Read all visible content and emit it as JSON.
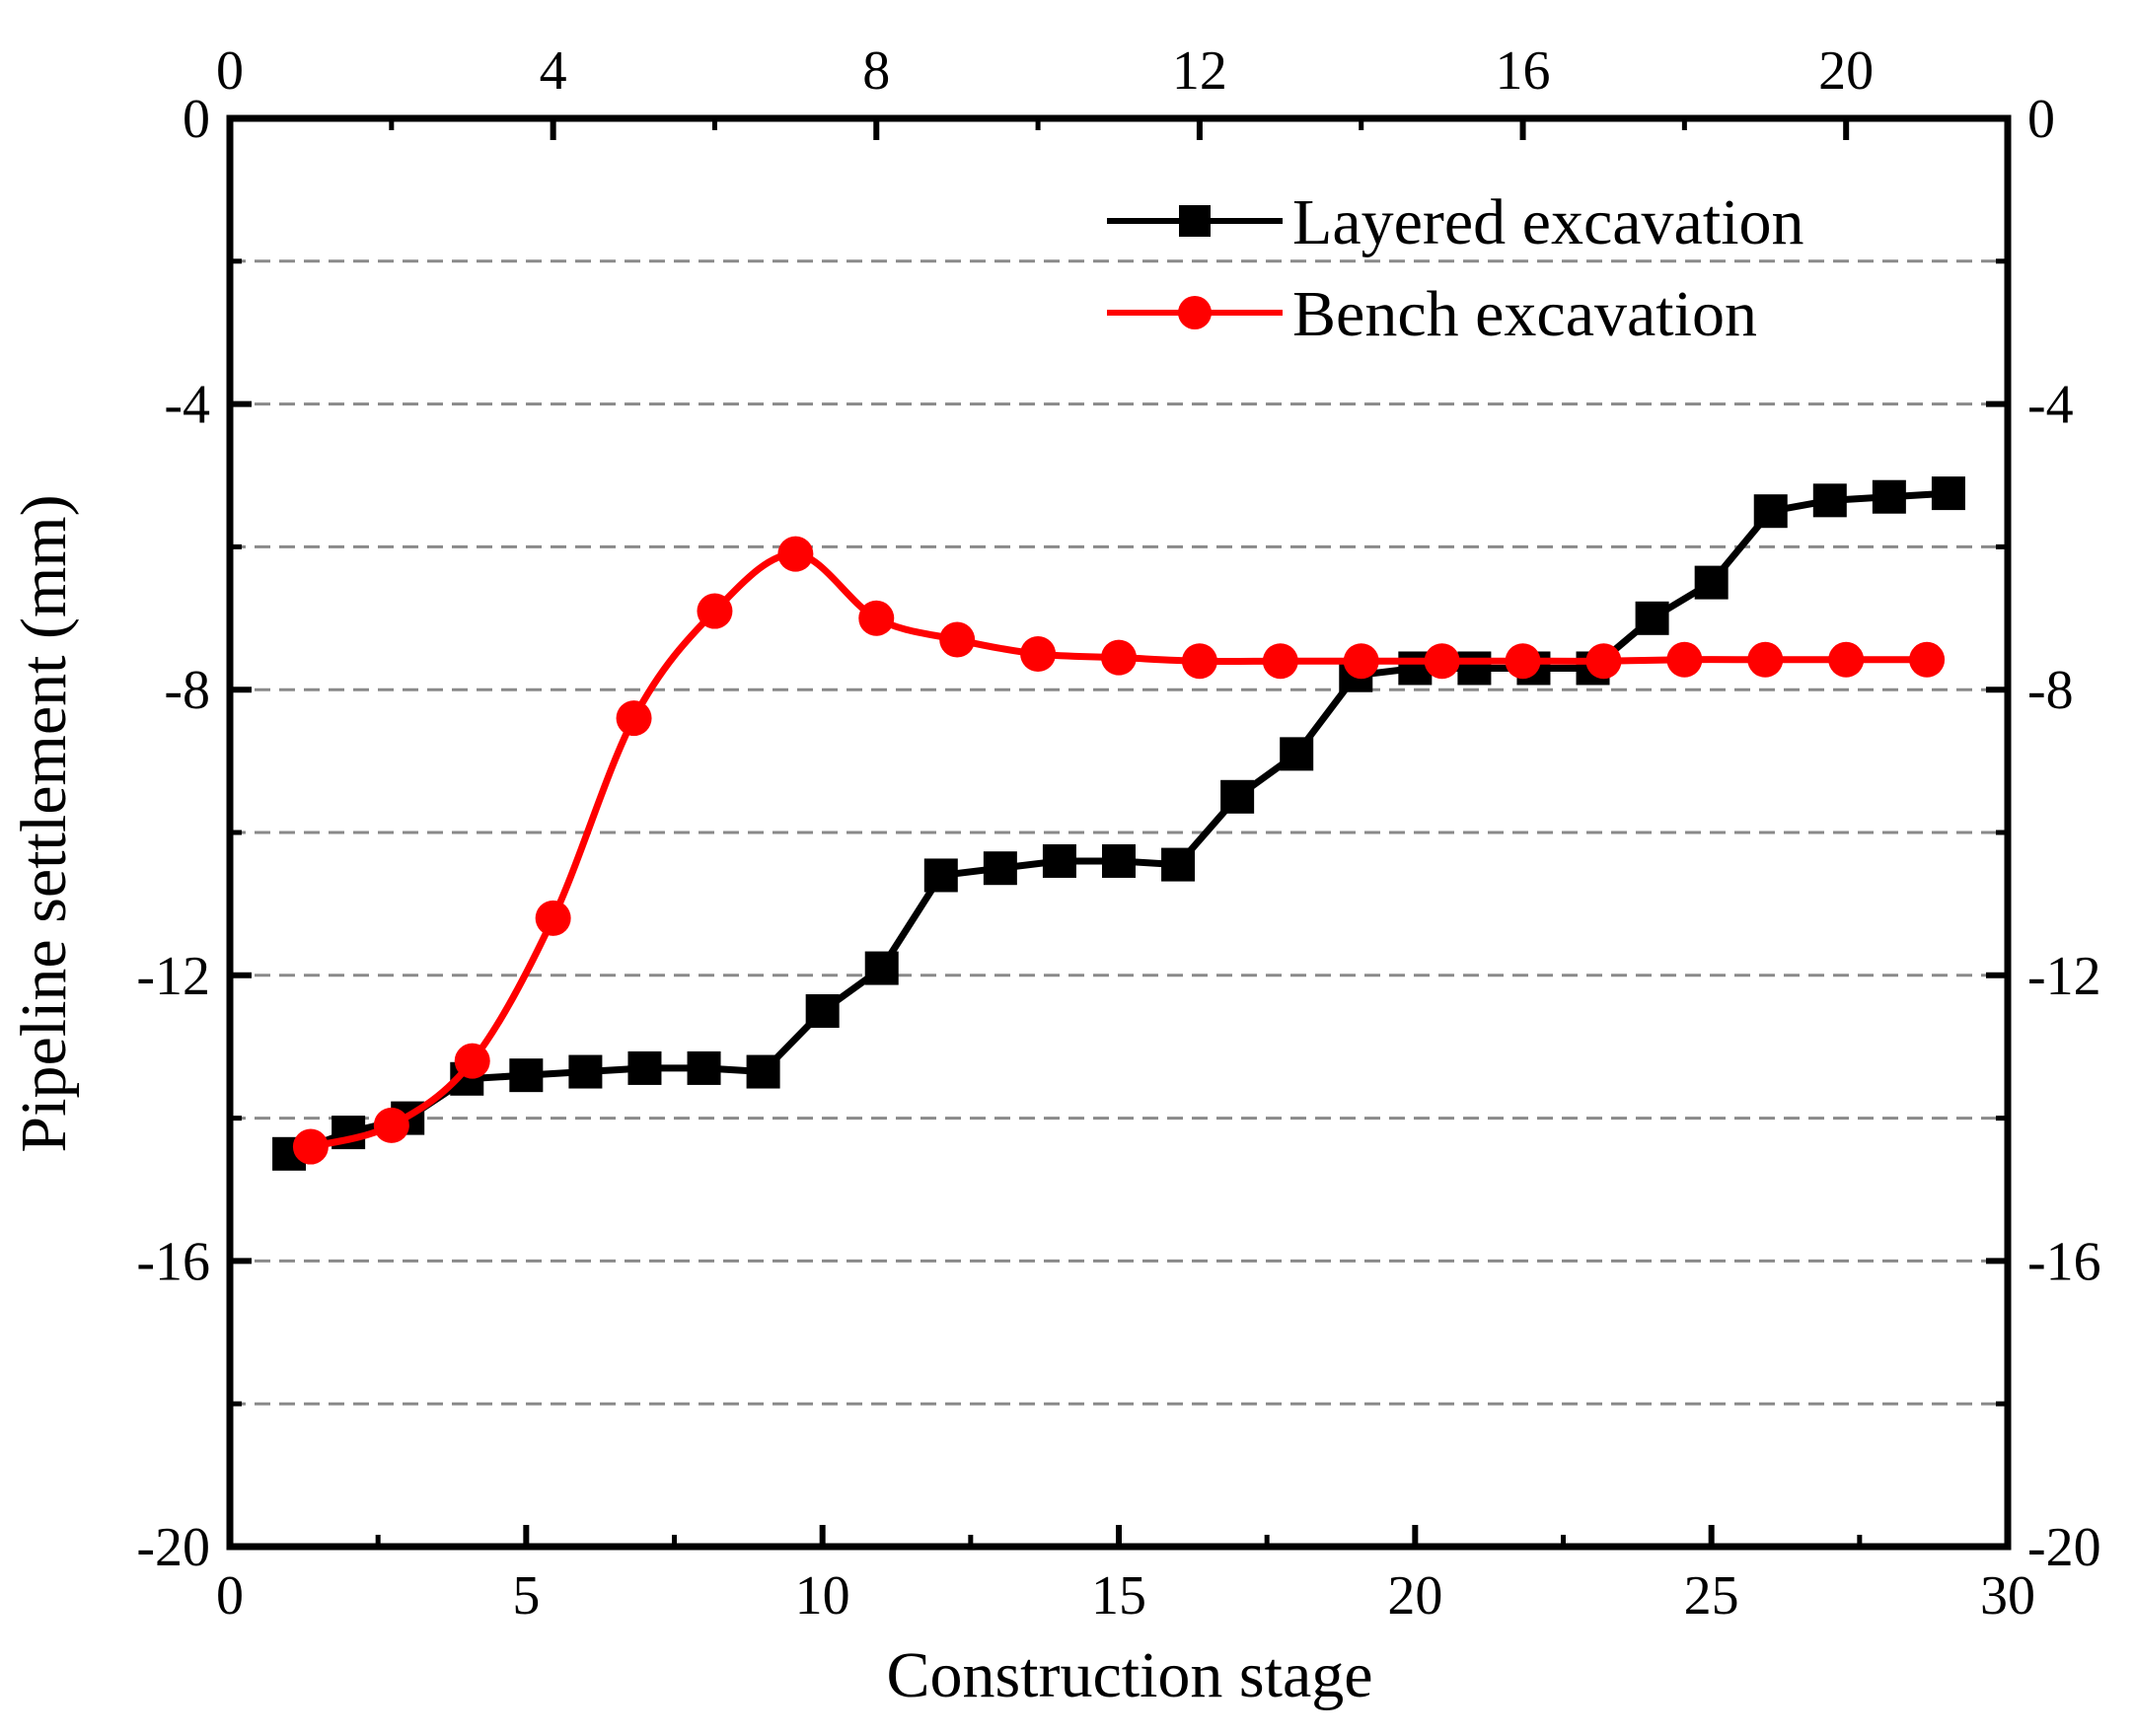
{
  "chart_data": {
    "type": "line",
    "xlabel": "Construction stage",
    "ylabel": "Pipeline settlement (mm)",
    "xlim": [
      0,
      30
    ],
    "ylim": [
      -20,
      0
    ],
    "x_ticks": [
      0,
      5,
      10,
      15,
      20,
      25,
      30
    ],
    "y_ticks": [
      0,
      -4,
      -8,
      -12,
      -16,
      -20
    ],
    "x_ticks_top": [
      0,
      4,
      8,
      12,
      16,
      20
    ],
    "x_top_range": [
      0,
      22
    ],
    "grid": "horizontal dashed",
    "legend_position": "top-right",
    "series": [
      {
        "name": "Layered excavation",
        "axis": "bottom",
        "color": "#000000",
        "marker": "square",
        "smooth": false,
        "x": [
          1,
          2,
          3,
          4,
          5,
          6,
          7,
          8,
          9,
          10,
          11,
          12,
          13,
          14,
          15,
          16,
          17,
          18,
          19,
          20,
          21,
          22,
          23,
          24,
          25,
          26,
          27,
          28,
          29
        ],
        "y": [
          -14.5,
          -14.2,
          -14.0,
          -13.45,
          -13.4,
          -13.35,
          -13.3,
          -13.3,
          -13.35,
          -12.5,
          -11.9,
          -10.6,
          -10.5,
          -10.4,
          -10.4,
          -10.45,
          -9.5,
          -8.9,
          -7.8,
          -7.7,
          -7.7,
          -7.7,
          -7.7,
          -7.0,
          -6.5,
          -5.5,
          -5.35,
          -5.3,
          -5.25
        ]
      },
      {
        "name": "Bench excavation",
        "axis": "top",
        "color": "#ff0000",
        "marker": "circle",
        "smooth": true,
        "x": [
          1,
          2,
          3,
          4,
          5,
          6,
          7,
          8,
          9,
          10,
          11,
          12,
          13,
          14,
          15,
          16,
          17,
          18,
          19,
          20,
          21
        ],
        "y": [
          -14.4,
          -14.1,
          -13.2,
          -11.2,
          -8.4,
          -6.9,
          -6.1,
          -7.0,
          -7.3,
          -7.5,
          -7.55,
          -7.6,
          -7.6,
          -7.6,
          -7.6,
          -7.6,
          -7.6,
          -7.58,
          -7.58,
          -7.58,
          -7.58
        ]
      }
    ]
  }
}
